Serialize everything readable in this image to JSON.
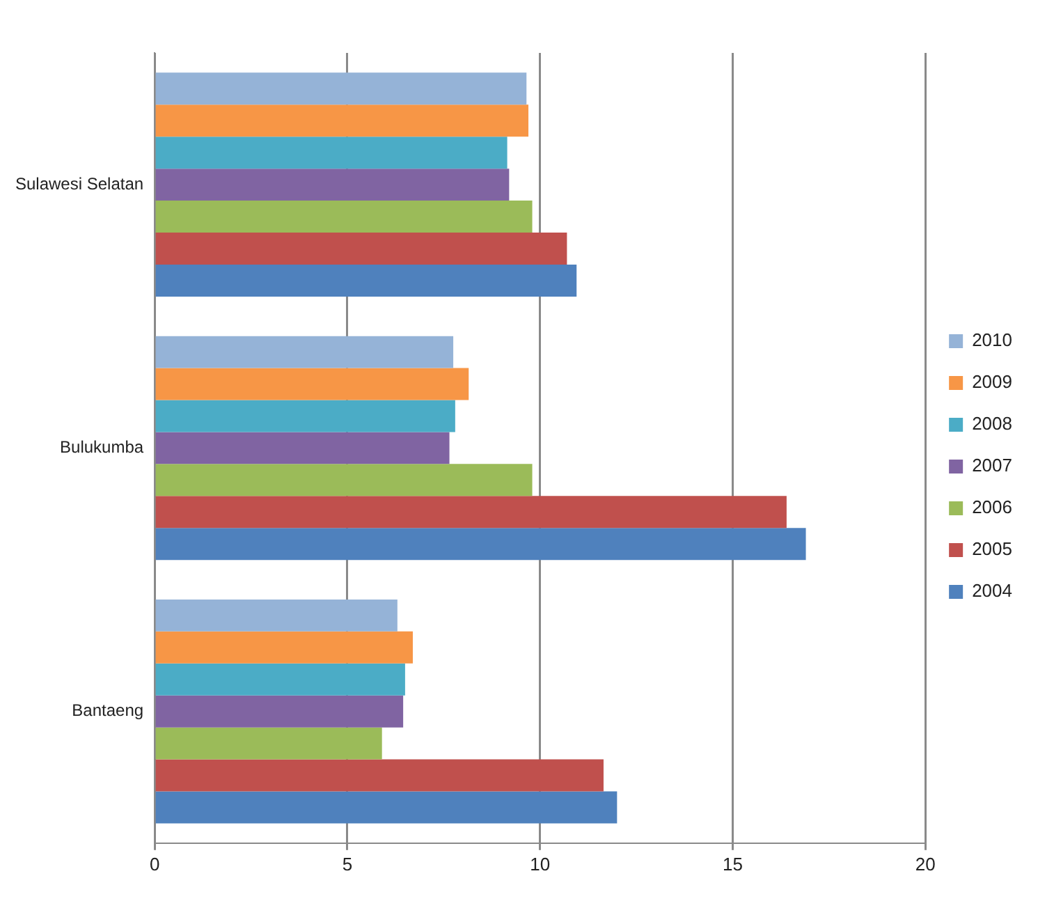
{
  "chart_data": {
    "type": "bar",
    "orientation": "horizontal",
    "categories": [
      "Sulawesi Selatan",
      "Bulukumba",
      "Bantaeng"
    ],
    "series": [
      {
        "name": "2010",
        "color": "#95b3d7",
        "values": [
          9.65,
          7.75,
          6.3
        ]
      },
      {
        "name": "2009",
        "color": "#f79646",
        "values": [
          9.7,
          8.15,
          6.7
        ]
      },
      {
        "name": "2008",
        "color": "#4bacc6",
        "values": [
          9.15,
          7.8,
          6.5
        ]
      },
      {
        "name": "2007",
        "color": "#8064a2",
        "values": [
          9.2,
          7.65,
          6.45
        ]
      },
      {
        "name": "2006",
        "color": "#9bbb59",
        "values": [
          9.8,
          9.8,
          5.9
        ]
      },
      {
        "name": "2005",
        "color": "#c0504d",
        "values": [
          10.7,
          16.4,
          11.65
        ]
      },
      {
        "name": "2004",
        "color": "#4f81bd",
        "values": [
          10.95,
          16.9,
          12.0
        ]
      }
    ],
    "xlim": [
      0,
      20
    ],
    "xticks": [
      0,
      5,
      10,
      15,
      20
    ],
    "grid": "x",
    "legend": "right"
  }
}
